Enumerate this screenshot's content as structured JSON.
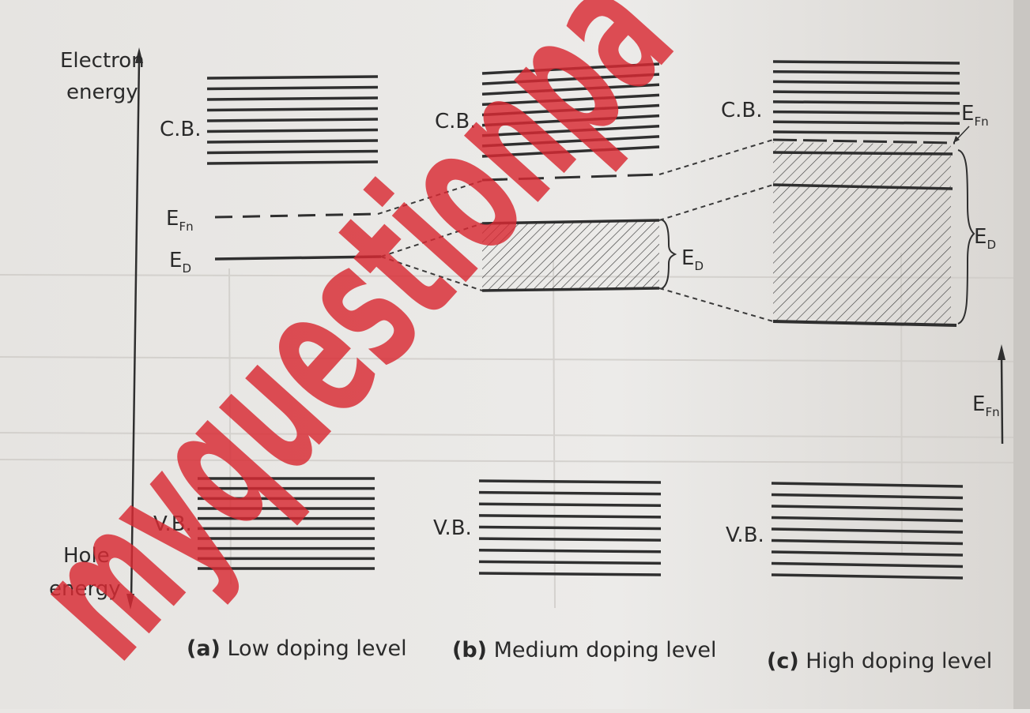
{
  "axis": {
    "top_label_line1": "Electron",
    "top_label_line2": "energy",
    "bottom_label_line1": "Hole",
    "bottom_label_line2": "energy"
  },
  "panels": [
    {
      "cb_label": "C.B.",
      "vb_label": "V.B.",
      "efn_main": "E",
      "efn_sub": "Fn",
      "ed_main": "E",
      "ed_sub": "D",
      "caption_letter": "(a)",
      "caption_text": " Low doping level"
    },
    {
      "cb_label": "C.B.",
      "vb_label": "V.B.",
      "ed_main": "E",
      "ed_sub": "D",
      "caption_letter": "(b)",
      "caption_text": " Medium doping level"
    },
    {
      "cb_label": "C.B.",
      "vb_label": "V.B.",
      "efn_main": "E",
      "efn_sub": "Fn",
      "ed_main": "E",
      "ed_sub": "D",
      "caption_letter": "(c)",
      "caption_text": " High doping level"
    }
  ],
  "side_arrow": {
    "main": "E",
    "sub": "Fn"
  },
  "watermark": "myquestionpa",
  "colors": {
    "line": "#2f2f2f",
    "watermark": "#d92a33",
    "paper": "#e9e7e4"
  }
}
